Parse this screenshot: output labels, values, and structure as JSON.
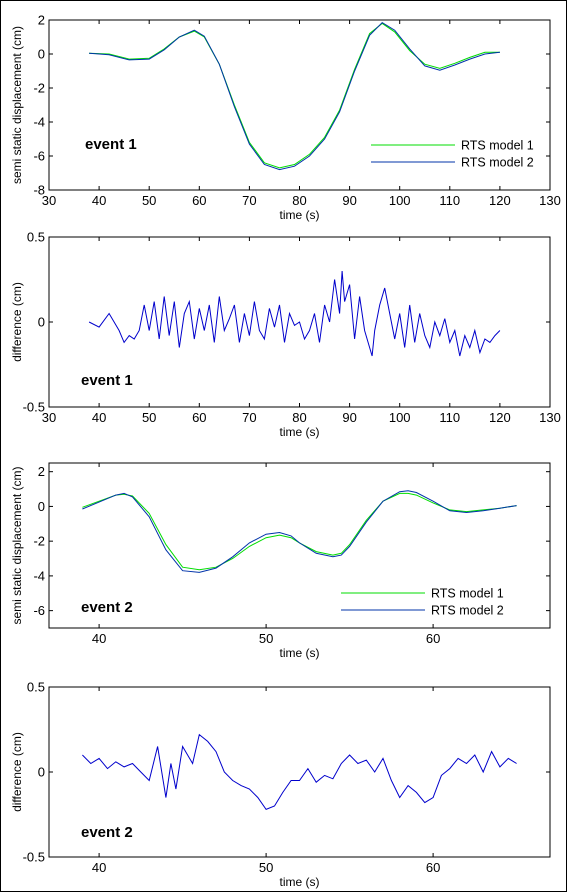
{
  "chart_data": [
    {
      "type": "line",
      "xlabel": "time (s)",
      "ylabel": "semi static displacement (cm)",
      "xlim": [
        30,
        130
      ],
      "ylim": [
        -8,
        2
      ],
      "xticks": [
        30,
        40,
        50,
        60,
        70,
        80,
        90,
        100,
        110,
        120,
        130
      ],
      "yticks": [
        -8,
        -6,
        -4,
        -2,
        0,
        2
      ],
      "annotation": "event 1",
      "legend_position": "lower-right",
      "series": [
        {
          "name": "RTS model 1",
          "color": "#00dd00",
          "x": [
            38,
            42,
            46,
            50,
            53,
            56,
            59,
            61,
            64,
            67,
            70,
            73,
            76,
            79,
            82,
            85,
            88,
            91,
            94,
            96.5,
            99,
            102,
            105,
            108,
            111,
            114,
            117,
            120
          ],
          "y": [
            0.05,
            0.0,
            -0.3,
            -0.25,
            0.3,
            1.0,
            1.35,
            1.0,
            -0.6,
            -3.0,
            -5.2,
            -6.4,
            -6.7,
            -6.5,
            -5.9,
            -4.9,
            -3.3,
            -0.9,
            1.2,
            1.8,
            1.3,
            0.2,
            -0.6,
            -0.85,
            -0.55,
            -0.2,
            0.1,
            0.1
          ]
        },
        {
          "name": "RTS model 2",
          "color": "#0033aa",
          "x": [
            38,
            42,
            46,
            50,
            53,
            56,
            59,
            61,
            64,
            67,
            70,
            73,
            76,
            79,
            82,
            85,
            88,
            91,
            94,
            96.5,
            99,
            102,
            105,
            108,
            111,
            114,
            117,
            120
          ],
          "y": [
            0.05,
            -0.05,
            -0.35,
            -0.3,
            0.25,
            1.0,
            1.4,
            1.05,
            -0.6,
            -3.1,
            -5.3,
            -6.5,
            -6.8,
            -6.6,
            -6.0,
            -5.0,
            -3.4,
            -1.0,
            1.1,
            1.85,
            1.4,
            0.3,
            -0.7,
            -0.95,
            -0.65,
            -0.3,
            0.0,
            0.1
          ]
        }
      ]
    },
    {
      "type": "line",
      "xlabel": "time (s)",
      "ylabel": "difference (cm)",
      "xlim": [
        30,
        130
      ],
      "ylim": [
        -0.5,
        0.5
      ],
      "xticks": [
        30,
        40,
        50,
        60,
        70,
        80,
        90,
        100,
        110,
        120,
        130
      ],
      "yticks": [
        -0.5,
        0,
        0.5
      ],
      "annotation": "event 1",
      "series": [
        {
          "name": "",
          "color": "#0000cc",
          "x": [
            38,
            40,
            42,
            44,
            45,
            46,
            47,
            48,
            49,
            50,
            51,
            52,
            53,
            54,
            55,
            56,
            57,
            58,
            59,
            60,
            61,
            62,
            63,
            64,
            65,
            66,
            67,
            68,
            69,
            70,
            71,
            72,
            73,
            74,
            75,
            76,
            77,
            78,
            79,
            80,
            81,
            82,
            83,
            84,
            85,
            86,
            87,
            88,
            88.5,
            89,
            90,
            91,
            92,
            93,
            94,
            94.5,
            95,
            96,
            97,
            98,
            99,
            100,
            101,
            102,
            103,
            104,
            105,
            106,
            107,
            108,
            109,
            110,
            111,
            112,
            113,
            114,
            115,
            116,
            117,
            118,
            119,
            120
          ],
          "y": [
            0.0,
            -0.03,
            0.05,
            -0.05,
            -0.12,
            -0.08,
            -0.1,
            -0.05,
            0.1,
            -0.05,
            0.12,
            -0.1,
            0.15,
            -0.08,
            0.12,
            -0.15,
            0.05,
            0.12,
            -0.1,
            0.08,
            -0.05,
            0.1,
            -0.12,
            0.15,
            -0.05,
            0.02,
            0.1,
            -0.12,
            0.05,
            -0.08,
            0.12,
            -0.05,
            -0.1,
            0.08,
            -0.03,
            0.1,
            -0.12,
            0.05,
            -0.02,
            0.0,
            -0.1,
            -0.05,
            0.05,
            -0.12,
            0.1,
            0.0,
            0.25,
            0.05,
            0.3,
            0.12,
            0.22,
            -0.1,
            0.15,
            -0.05,
            -0.15,
            -0.2,
            -0.05,
            0.1,
            0.2,
            0.05,
            -0.1,
            0.05,
            -0.15,
            0.1,
            -0.12,
            0.05,
            -0.08,
            -0.15,
            0.0,
            -0.08,
            0.02,
            -0.12,
            -0.05,
            -0.2,
            -0.08,
            -0.15,
            -0.05,
            -0.18,
            -0.1,
            -0.12,
            -0.08,
            -0.05
          ]
        }
      ]
    },
    {
      "type": "line",
      "xlabel": "time (s)",
      "ylabel": "semi static displacement (cm)",
      "xlim": [
        37,
        67
      ],
      "ylim": [
        -7,
        2.5
      ],
      "xticks": [
        40,
        50,
        60
      ],
      "yticks": [
        -6,
        -4,
        -2,
        0,
        2
      ],
      "annotation": "event 2",
      "legend_position": "lower-right",
      "series": [
        {
          "name": "RTS model 1",
          "color": "#00dd00",
          "x": [
            39,
            40,
            41,
            41.5,
            42,
            43,
            44,
            45,
            46,
            47,
            48,
            49,
            50,
            50.8,
            51.5,
            52,
            53,
            54,
            54.5,
            55,
            56,
            57,
            58,
            58.5,
            59,
            60,
            61,
            62,
            63,
            64,
            65
          ],
          "y": [
            -0.05,
            0.3,
            0.65,
            0.7,
            0.6,
            -0.4,
            -2.2,
            -3.5,
            -3.65,
            -3.5,
            -3.0,
            -2.3,
            -1.8,
            -1.65,
            -1.8,
            -2.1,
            -2.6,
            -2.8,
            -2.7,
            -2.2,
            -0.8,
            0.3,
            0.75,
            0.75,
            0.65,
            0.2,
            -0.2,
            -0.3,
            -0.2,
            -0.1,
            0.05
          ]
        },
        {
          "name": "RTS model 2",
          "color": "#0033aa",
          "x": [
            39,
            40,
            41,
            41.5,
            42,
            43,
            44,
            45,
            46,
            47,
            48,
            49,
            50,
            50.8,
            51.5,
            52,
            53,
            54,
            54.5,
            55,
            56,
            57,
            58,
            58.5,
            59,
            60,
            61,
            62,
            63,
            64,
            65
          ],
          "y": [
            -0.15,
            0.25,
            0.65,
            0.75,
            0.55,
            -0.6,
            -2.5,
            -3.7,
            -3.8,
            -3.55,
            -2.9,
            -2.1,
            -1.6,
            -1.5,
            -1.7,
            -2.1,
            -2.7,
            -2.9,
            -2.8,
            -2.3,
            -0.9,
            0.3,
            0.85,
            0.9,
            0.8,
            0.3,
            -0.25,
            -0.35,
            -0.25,
            -0.1,
            0.05
          ]
        }
      ]
    },
    {
      "type": "line",
      "xlabel": "time (s)",
      "ylabel": "difference (cm)",
      "xlim": [
        37,
        67
      ],
      "ylim": [
        -0.5,
        0.5
      ],
      "xticks": [
        40,
        50,
        60
      ],
      "yticks": [
        -0.5,
        0,
        0.5
      ],
      "annotation": "event 2",
      "series": [
        {
          "name": "",
          "color": "#0000cc",
          "x": [
            39,
            39.5,
            40,
            40.5,
            41,
            41.5,
            42,
            42.5,
            43,
            43.5,
            44,
            44.3,
            44.6,
            45,
            45.3,
            45.6,
            46,
            46.5,
            47,
            47.5,
            48,
            48.5,
            49,
            49.5,
            50,
            50.5,
            51,
            51.5,
            52,
            52.5,
            53,
            53.5,
            54,
            54.5,
            55,
            55.5,
            56,
            56.5,
            57,
            57.5,
            58,
            58.5,
            59,
            59.5,
            60,
            60.5,
            61,
            61.5,
            62,
            62.5,
            63,
            63.5,
            64,
            64.5,
            65
          ],
          "y": [
            0.1,
            0.05,
            0.08,
            0.02,
            0.06,
            0.03,
            0.05,
            0.0,
            -0.05,
            0.15,
            -0.15,
            0.05,
            -0.1,
            0.15,
            0.1,
            0.05,
            0.22,
            0.18,
            0.12,
            0.0,
            -0.05,
            -0.08,
            -0.1,
            -0.15,
            -0.22,
            -0.2,
            -0.12,
            -0.05,
            -0.05,
            0.02,
            -0.06,
            -0.02,
            -0.04,
            0.05,
            0.1,
            0.05,
            0.07,
            0.0,
            0.08,
            -0.05,
            -0.15,
            -0.08,
            -0.12,
            -0.18,
            -0.15,
            -0.02,
            0.02,
            0.08,
            0.05,
            0.1,
            0.0,
            0.12,
            0.03,
            0.08,
            0.05
          ]
        }
      ]
    }
  ]
}
